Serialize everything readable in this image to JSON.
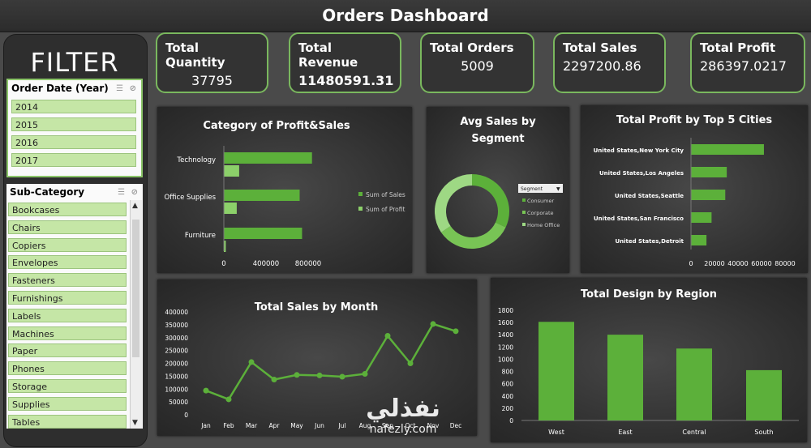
{
  "header": {
    "title": "Orders Dashboard"
  },
  "filter": {
    "title": "FILTER",
    "order_date": {
      "label": "Order Date (Year)",
      "items": [
        "2014",
        "2015",
        "2016",
        "2017"
      ]
    },
    "sub_category": {
      "label": "Sub-Category",
      "items": [
        "Bookcases",
        "Chairs",
        "Copiers",
        "Envelopes",
        "Fasteners",
        "Furnishings",
        "Labels",
        "Machines",
        "Paper",
        "Phones",
        "Storage",
        "Supplies",
        "Tables"
      ]
    }
  },
  "kpis": [
    {
      "label": "Total Quantity",
      "value": "37795"
    },
    {
      "label": "Total Revenue",
      "value": "11480591.31"
    },
    {
      "label": "Total Orders",
      "value": "5009"
    },
    {
      "label": "Total Sales",
      "value": "2297200.86"
    },
    {
      "label": "Total Profit",
      "value": "286397.0217"
    }
  ],
  "watermark": {
    "arabic": "نفذلي",
    "latin": "nafezly.com"
  },
  "colors": {
    "accent": "#5cb03a",
    "accent_light": "#8cd06a",
    "kpi_border": "#7ab85e"
  },
  "chart_data": [
    {
      "id": "category",
      "type": "bar",
      "orientation": "horizontal",
      "title": "Category of Profit&Sales",
      "categories": [
        "Technology",
        "Office Supplies",
        "Furniture"
      ],
      "series": [
        {
          "name": "Sum of Sales",
          "values": [
            836154,
            719047,
            741999
          ]
        },
        {
          "name": "Sum of Profit",
          "values": [
            145455,
            122491,
            18451
          ]
        }
      ],
      "xlim": [
        0,
        800000
      ],
      "xticks": [
        "0",
        "400000",
        "800000"
      ],
      "legend": "right"
    },
    {
      "id": "segment",
      "type": "pie",
      "donut": true,
      "title": "Avg Sales by Segment",
      "legend_header": "Segment",
      "labels": [
        "Consumer",
        "Corporate",
        "Home Office"
      ],
      "values": [
        223.7,
        233.8,
        240.9
      ],
      "legend": "right"
    },
    {
      "id": "cities",
      "type": "bar",
      "orientation": "horizontal",
      "title": "Total Profit by Top 5 Cities",
      "categories": [
        "United States,New York City",
        "United States,Los Angeles",
        "United States,Seattle",
        "United States,San Francisco",
        "United States,Detroit"
      ],
      "values": [
        62037,
        30441,
        29156,
        17508,
        13181
      ],
      "xlim": [
        0,
        80000
      ],
      "xticks": [
        "0",
        "20000",
        "40000",
        "60000",
        "80000"
      ]
    },
    {
      "id": "monthly",
      "type": "line",
      "title": "Total Sales by Month",
      "categories": [
        "Jan",
        "Feb",
        "Mar",
        "Apr",
        "May",
        "Jun",
        "Jul",
        "Aug",
        "Sep",
        "Oct",
        "Nov",
        "Dec"
      ],
      "values": [
        94000,
        60000,
        205000,
        137000,
        155000,
        153000,
        148000,
        159000,
        307000,
        200000,
        353000,
        325000
      ],
      "ylim": [
        0,
        400000
      ],
      "yticks": [
        "0",
        "50000",
        "100000",
        "150000",
        "200000",
        "250000",
        "300000",
        "350000",
        "400000"
      ]
    },
    {
      "id": "region",
      "type": "bar",
      "title": "Total Design by Region",
      "categories": [
        "West",
        "East",
        "Central",
        "South"
      ],
      "values": [
        1611,
        1401,
        1175,
        822
      ],
      "ylim": [
        0,
        1800
      ],
      "yticks": [
        "0",
        "200",
        "400",
        "600",
        "800",
        "1000",
        "1200",
        "1400",
        "1600",
        "1800"
      ]
    }
  ]
}
